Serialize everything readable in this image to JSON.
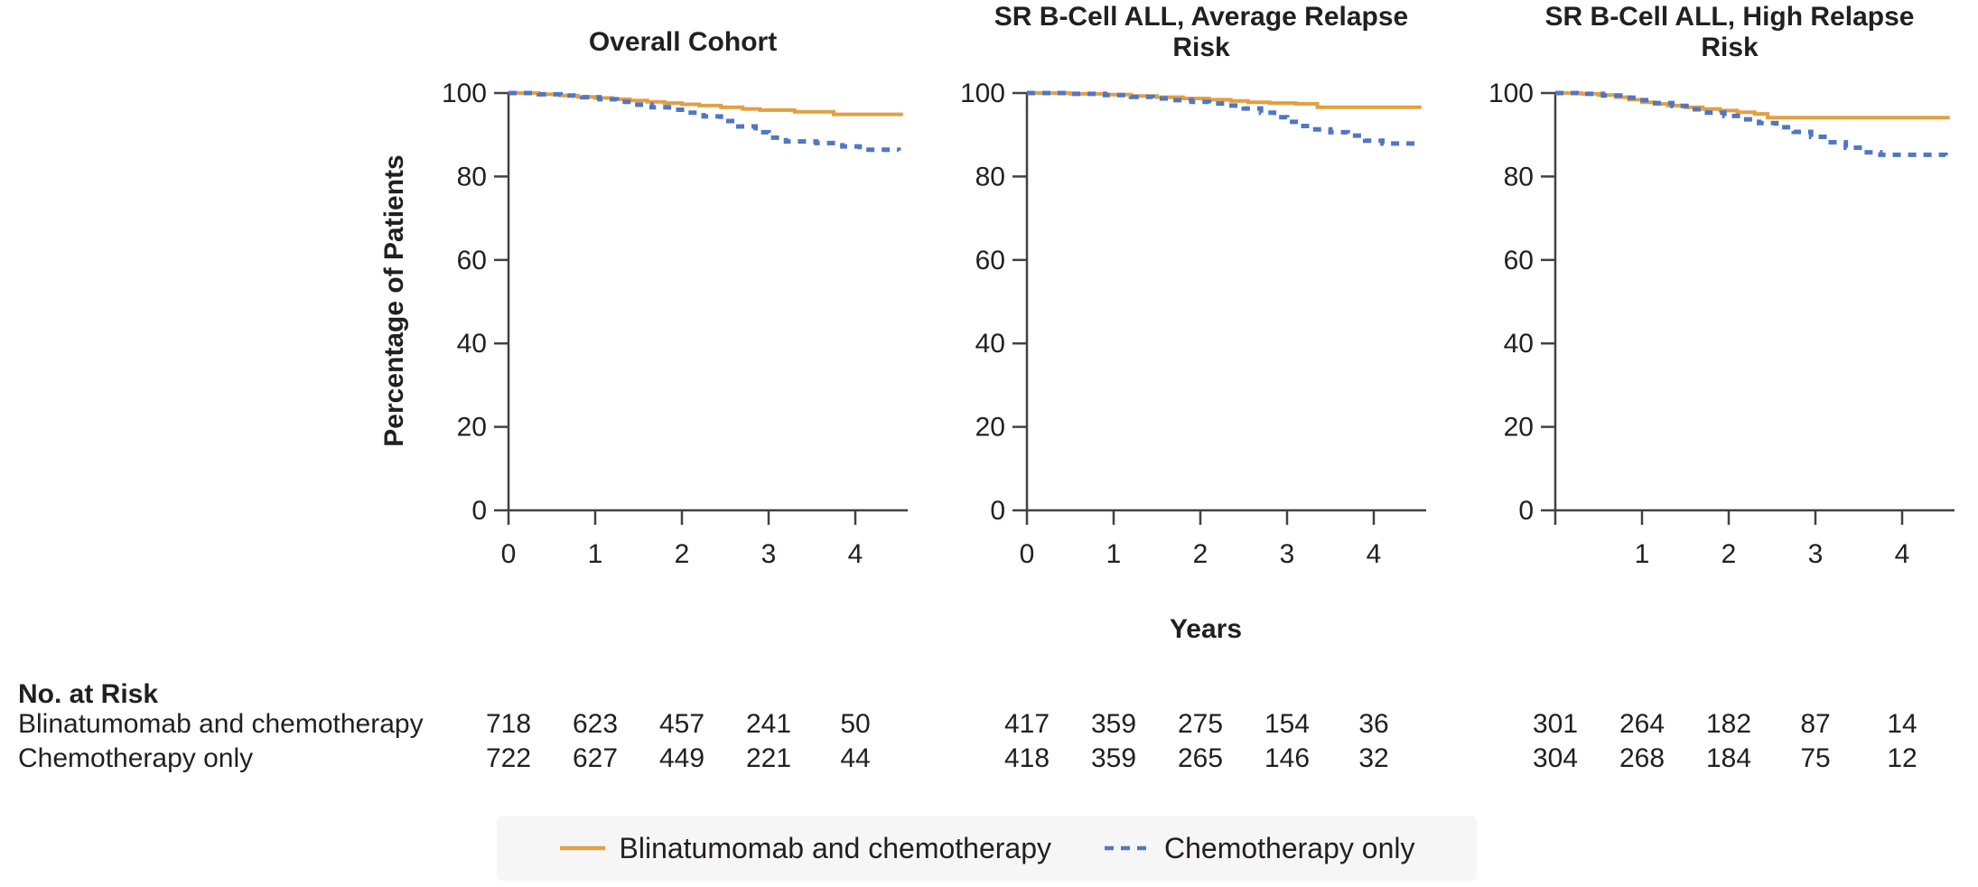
{
  "figure": {
    "y_axis_label": "Percentage of Patients",
    "x_axis_label": "Years",
    "colors": {
      "blinatumomab_line": "#E2A042",
      "chemotherapy_line": "#5076C6",
      "axis": "#414141",
      "text": "#231f20",
      "legend_background": "#f6f6f7"
    },
    "legend": [
      {
        "label": "Blinatumomab and chemotherapy",
        "color": "#E2A042",
        "style": "solid"
      },
      {
        "label": "Chemotherapy only",
        "color": "#5076C6",
        "style": "dashed"
      }
    ],
    "no_at_risk": {
      "title": "No. at Risk",
      "rows": [
        {
          "label": "Blinatumomab and chemotherapy",
          "values_by_panel": [
            [
              718,
              623,
              457,
              241,
              50
            ],
            [
              417,
              359,
              275,
              154,
              36
            ],
            [
              301,
              264,
              182,
              87,
              14
            ]
          ]
        },
        {
          "label": "Chemotherapy only",
          "values_by_panel": [
            [
              722,
              627,
              449,
              221,
              44
            ],
            [
              418,
              359,
              265,
              146,
              32
            ],
            [
              304,
              268,
              184,
              75,
              12
            ]
          ]
        }
      ]
    }
  },
  "chart_data": [
    {
      "type": "line",
      "subtype": "kaplan-meier-step",
      "title": "Overall Cohort",
      "xlabel": "Years",
      "ylabel": "Percentage of Patients",
      "xlim": [
        0,
        4.6
      ],
      "ylim": [
        0,
        100
      ],
      "xticks": [
        0,
        1,
        2,
        3,
        4
      ],
      "xtick_labels": [
        "0",
        "1",
        "2",
        "3",
        "4"
      ],
      "yticks": [
        0,
        20,
        40,
        60,
        80,
        100
      ],
      "grid": false,
      "legend_position": "bottom",
      "series": [
        {
          "name": "Blinatumomab and chemotherapy",
          "color": "#E2A042",
          "dash": false,
          "points": [
            [
              0,
              100
            ],
            [
              0.35,
              99.7
            ],
            [
              0.6,
              99.4
            ],
            [
              0.8,
              99.1
            ],
            [
              1.0,
              98.8
            ],
            [
              1.2,
              98.5
            ],
            [
              1.4,
              98.2
            ],
            [
              1.6,
              97.9
            ],
            [
              1.8,
              97.6
            ],
            [
              2.0,
              97.3
            ],
            [
              2.2,
              97.0
            ],
            [
              2.45,
              96.6
            ],
            [
              2.7,
              96.2
            ],
            [
              2.9,
              95.9
            ],
            [
              3.3,
              95.5
            ],
            [
              3.75,
              94.9
            ],
            [
              4.55,
              94.9
            ]
          ]
        },
        {
          "name": "Chemotherapy only",
          "color": "#5076C6",
          "dash": true,
          "points": [
            [
              0,
              100
            ],
            [
              0.35,
              99.7
            ],
            [
              0.6,
              99.4
            ],
            [
              0.85,
              99.0
            ],
            [
              1.05,
              98.5
            ],
            [
              1.25,
              97.9
            ],
            [
              1.45,
              97.2
            ],
            [
              1.65,
              96.6
            ],
            [
              1.85,
              96.0
            ],
            [
              2.05,
              95.3
            ],
            [
              2.25,
              94.4
            ],
            [
              2.45,
              93.3
            ],
            [
              2.65,
              92.0
            ],
            [
              2.85,
              90.6
            ],
            [
              3.0,
              89.3
            ],
            [
              3.2,
              88.4
            ],
            [
              3.55,
              88.0
            ],
            [
              3.85,
              87.2
            ],
            [
              4.05,
              86.4
            ],
            [
              4.5,
              86.2
            ]
          ]
        }
      ],
      "no_at_risk": {
        "blinatumomab_and_chemotherapy": [
          718,
          623,
          457,
          241,
          50
        ],
        "chemotherapy_only": [
          722,
          627,
          449,
          221,
          44
        ]
      }
    },
    {
      "type": "line",
      "subtype": "kaplan-meier-step",
      "title": "SR B-Cell ALL, Average Relapse\nRisk",
      "xlabel": "Years",
      "ylabel": "Percentage of Patients",
      "xlim": [
        0,
        4.6
      ],
      "ylim": [
        0,
        100
      ],
      "xticks": [
        0,
        1,
        2,
        3,
        4
      ],
      "xtick_labels": [
        "0",
        "1",
        "2",
        "3",
        "4"
      ],
      "yticks": [
        0,
        20,
        40,
        60,
        80,
        100
      ],
      "grid": false,
      "legend_position": "bottom",
      "series": [
        {
          "name": "Blinatumomab and chemotherapy",
          "color": "#E2A042",
          "dash": false,
          "points": [
            [
              0,
              100
            ],
            [
              0.5,
              99.8
            ],
            [
              0.9,
              99.6
            ],
            [
              1.2,
              99.3
            ],
            [
              1.5,
              99.0
            ],
            [
              1.8,
              98.7
            ],
            [
              2.1,
              98.4
            ],
            [
              2.35,
              98.1
            ],
            [
              2.55,
              97.8
            ],
            [
              2.8,
              97.6
            ],
            [
              3.1,
              97.4
            ],
            [
              3.35,
              96.6
            ],
            [
              4.55,
              96.6
            ]
          ]
        },
        {
          "name": "Chemotherapy only",
          "color": "#5076C6",
          "dash": true,
          "points": [
            [
              0,
              100
            ],
            [
              0.5,
              99.8
            ],
            [
              0.9,
              99.5
            ],
            [
              1.2,
              99.1
            ],
            [
              1.45,
              98.7
            ],
            [
              1.65,
              98.3
            ],
            [
              1.9,
              97.9
            ],
            [
              2.1,
              97.5
            ],
            [
              2.3,
              97.0
            ],
            [
              2.5,
              96.3
            ],
            [
              2.7,
              95.3
            ],
            [
              2.85,
              94.2
            ],
            [
              3.0,
              93.1
            ],
            [
              3.15,
              92.1
            ],
            [
              3.3,
              91.3
            ],
            [
              3.5,
              90.6
            ],
            [
              3.7,
              89.8
            ],
            [
              3.9,
              88.6
            ],
            [
              4.1,
              87.9
            ],
            [
              4.5,
              87.7
            ]
          ]
        }
      ],
      "no_at_risk": {
        "blinatumomab_and_chemotherapy": [
          417,
          359,
          275,
          154,
          36
        ],
        "chemotherapy_only": [
          418,
          359,
          265,
          146,
          32
        ]
      }
    },
    {
      "type": "line",
      "subtype": "kaplan-meier-step",
      "title": "SR B-Cell ALL, High Relapse\nRisk",
      "xlabel": "Years",
      "ylabel": "Percentage of Patients",
      "xlim": [
        0,
        4.6
      ],
      "ylim": [
        0,
        100
      ],
      "xticks": [
        0,
        1,
        2,
        3,
        4
      ],
      "xtick_labels": [
        "",
        "1",
        "2",
        "3",
        "4"
      ],
      "yticks": [
        0,
        20,
        40,
        60,
        80,
        100
      ],
      "grid": false,
      "legend_position": "bottom",
      "series": [
        {
          "name": "Blinatumomab and chemotherapy",
          "color": "#E2A042",
          "dash": false,
          "points": [
            [
              0,
              100
            ],
            [
              0.3,
              99.8
            ],
            [
              0.5,
              99.5
            ],
            [
              0.7,
              99.0
            ],
            [
              0.85,
              98.4
            ],
            [
              1.0,
              97.8
            ],
            [
              1.15,
              97.4
            ],
            [
              1.3,
              97.0
            ],
            [
              1.5,
              96.6
            ],
            [
              1.7,
              96.2
            ],
            [
              1.9,
              95.8
            ],
            [
              2.1,
              95.4
            ],
            [
              2.3,
              95.0
            ],
            [
              2.45,
              94.1
            ],
            [
              4.55,
              94.1
            ]
          ]
        },
        {
          "name": "Chemotherapy only",
          "color": "#5076C6",
          "dash": true,
          "points": [
            [
              0,
              100
            ],
            [
              0.3,
              99.8
            ],
            [
              0.55,
              99.4
            ],
            [
              0.75,
              98.9
            ],
            [
              0.95,
              98.3
            ],
            [
              1.15,
              97.6
            ],
            [
              1.35,
              96.9
            ],
            [
              1.55,
              96.1
            ],
            [
              1.75,
              95.3
            ],
            [
              1.95,
              94.5
            ],
            [
              2.15,
              93.7
            ],
            [
              2.35,
              92.8
            ],
            [
              2.55,
              91.8
            ],
            [
              2.75,
              90.7
            ],
            [
              2.95,
              89.5
            ],
            [
              3.15,
              88.2
            ],
            [
              3.35,
              86.9
            ],
            [
              3.55,
              85.8
            ],
            [
              3.75,
              85.2
            ],
            [
              4.5,
              85.0
            ]
          ]
        }
      ],
      "no_at_risk": {
        "blinatumomab_and_chemotherapy": [
          301,
          264,
          182,
          87,
          14
        ],
        "chemotherapy_only": [
          304,
          268,
          184,
          75,
          12
        ]
      }
    }
  ]
}
